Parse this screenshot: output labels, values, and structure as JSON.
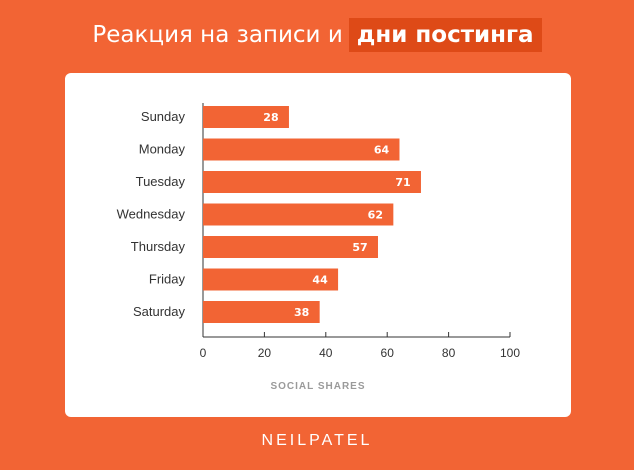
{
  "header": {
    "title_plain": "Реакция на записи и",
    "title_highlight": "дни постинга"
  },
  "colors": {
    "background": "#F26434",
    "highlight": "#DE4A17",
    "bar": "#F26434",
    "card": "#FFFFFF"
  },
  "chart_data": {
    "type": "bar",
    "orientation": "horizontal",
    "categories": [
      "Sunday",
      "Monday",
      "Tuesday",
      "Wednesday",
      "Thursday",
      "Friday",
      "Saturday"
    ],
    "values": [
      28,
      64,
      71,
      62,
      57,
      44,
      38
    ],
    "xlabel": "SOCIAL SHARES",
    "xlim": [
      0,
      100
    ],
    "xticks": [
      0,
      20,
      40,
      60,
      80,
      100
    ],
    "data_labels": true,
    "grid": false
  },
  "footer": {
    "brand": "NEILPATEL"
  }
}
